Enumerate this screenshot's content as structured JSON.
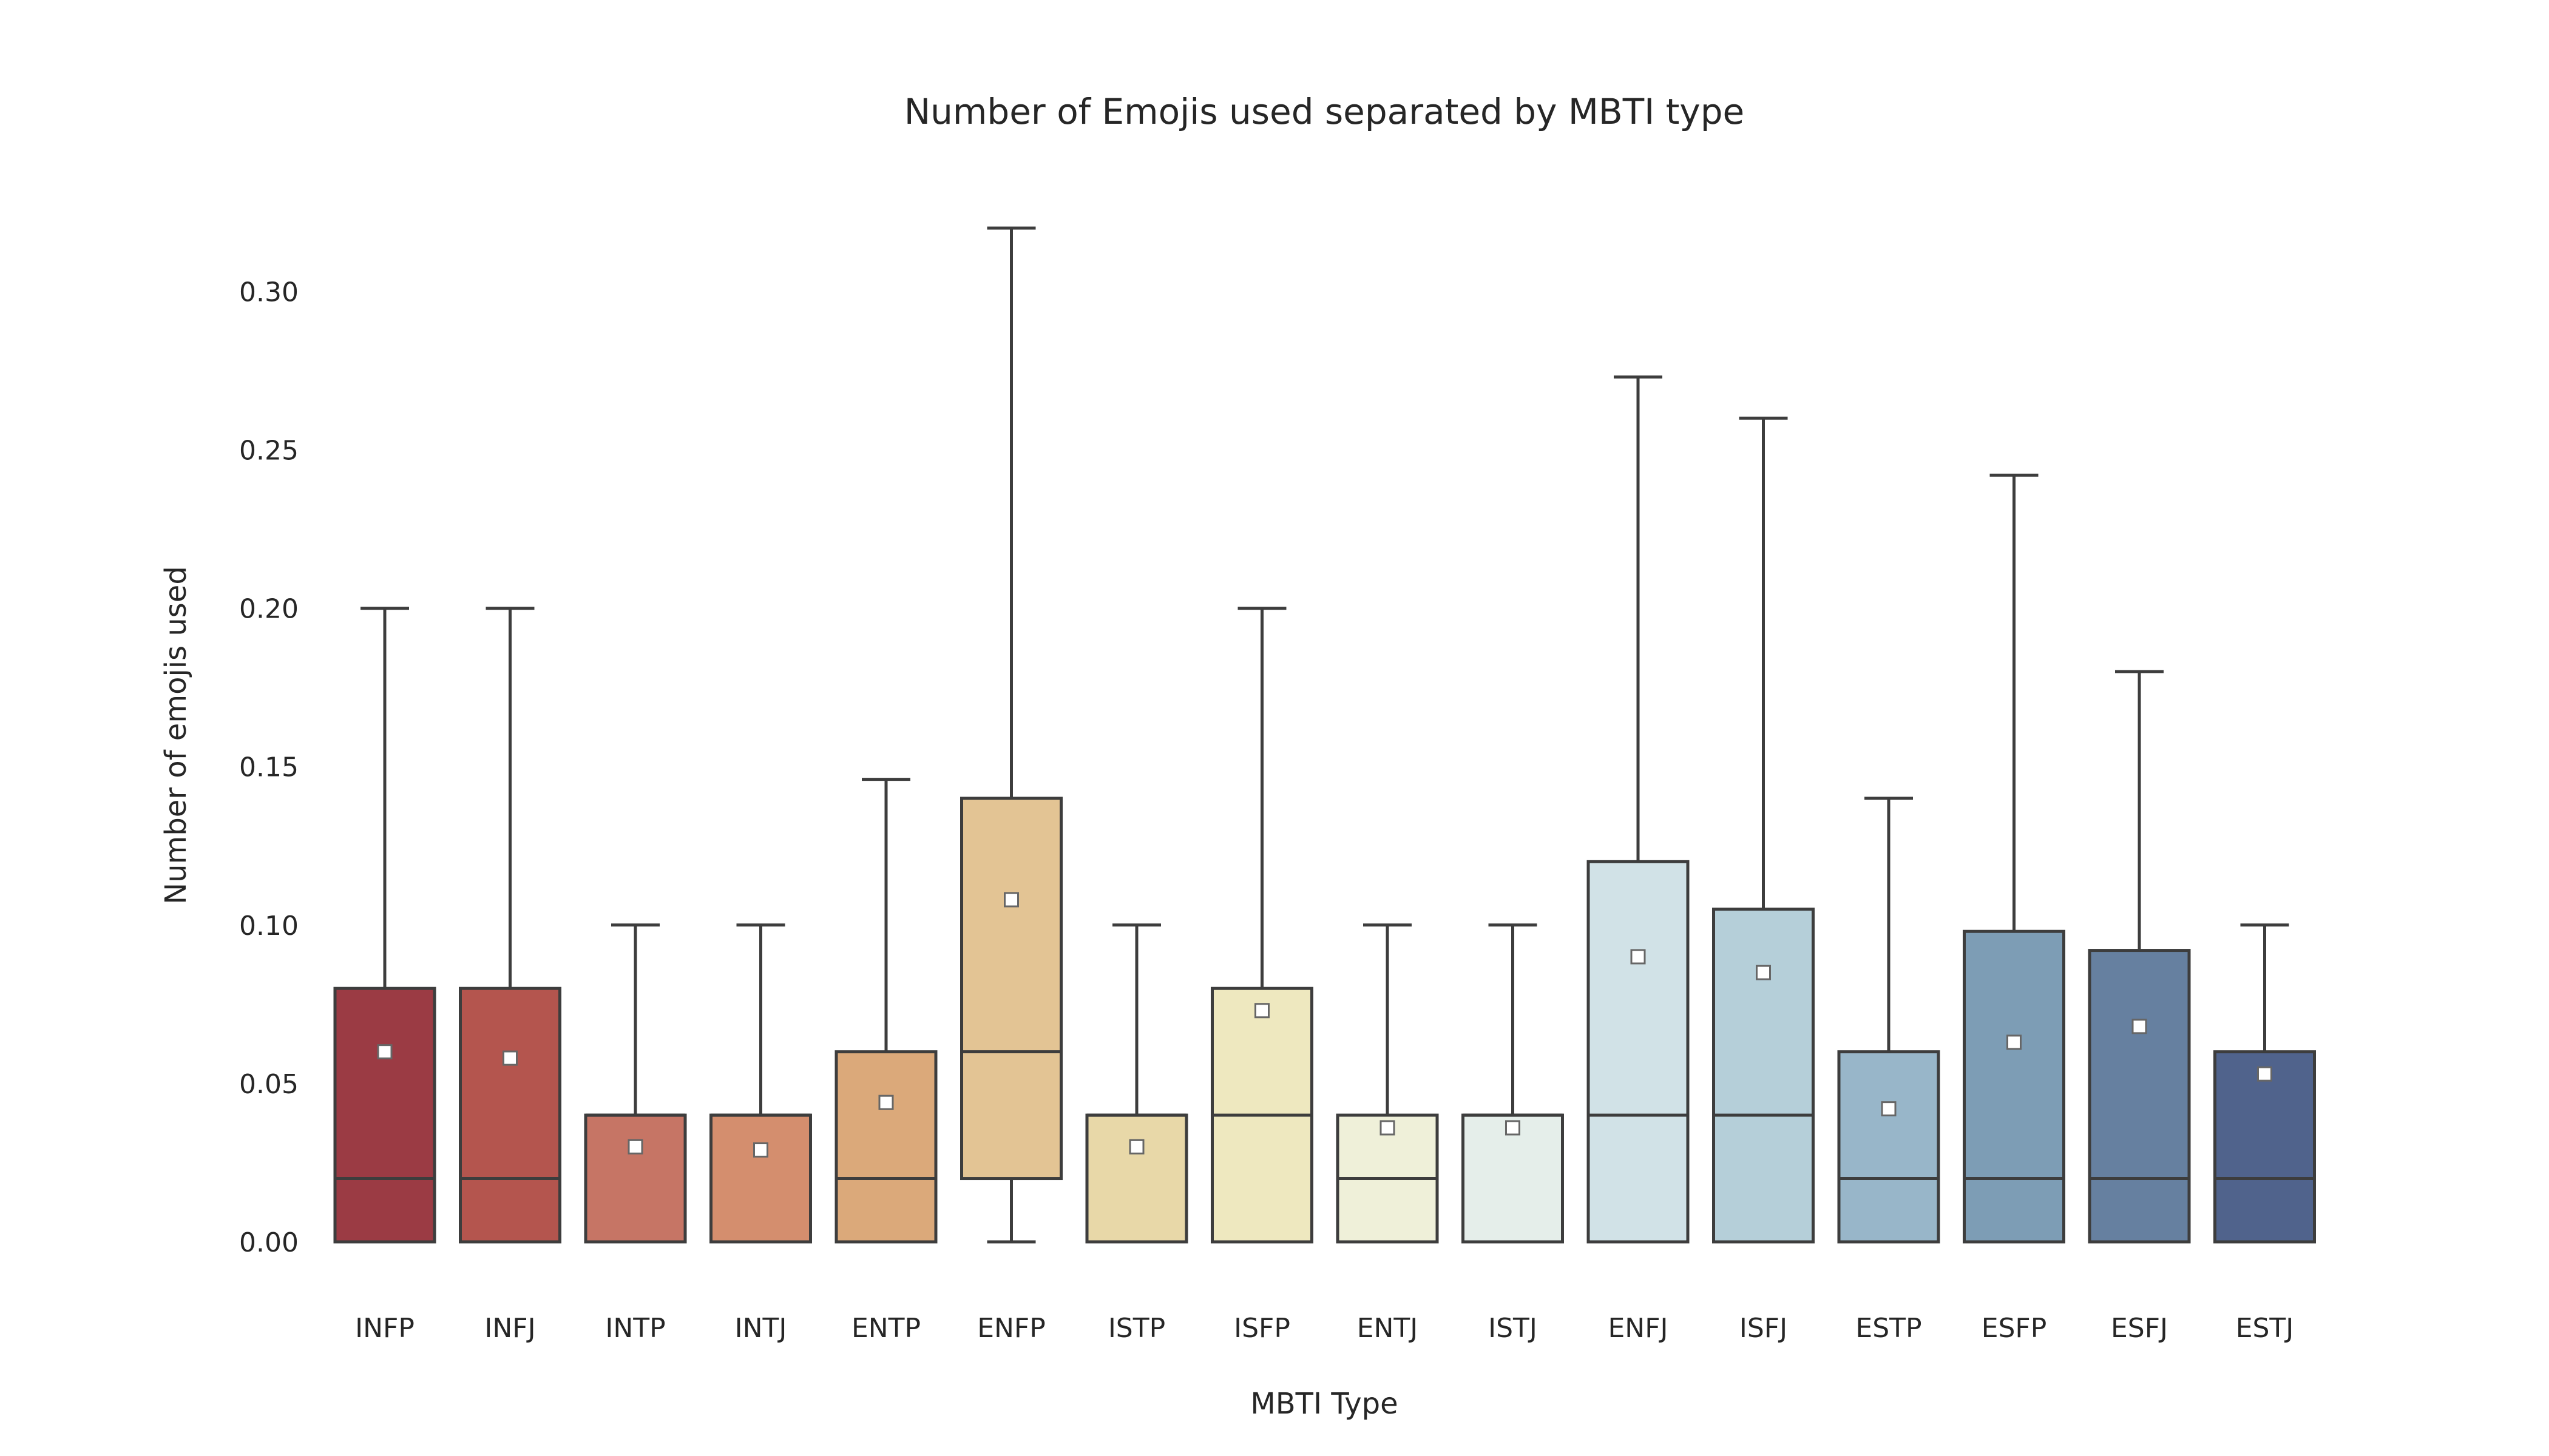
{
  "chart_data": {
    "type": "box",
    "title": "Number of Emojis used separated by MBTI type",
    "xlabel": "MBTI Type",
    "ylabel": "Number of emojis used",
    "ylim": [
      0,
      0.32
    ],
    "yticks": [
      "0.00",
      "0.05",
      "0.10",
      "0.15",
      "0.20",
      "0.25",
      "0.30"
    ],
    "ytick_values": [
      0,
      0.05,
      0.1,
      0.15,
      0.2,
      0.25,
      0.3
    ],
    "grid": false,
    "mean_marker": "white square",
    "categories": [
      "INFP",
      "INFJ",
      "INTP",
      "INTJ",
      "ENTP",
      "ENFP",
      "ISTP",
      "ISFP",
      "ENTJ",
      "ISTJ",
      "ENFJ",
      "ISFJ",
      "ESTP",
      "ESFP",
      "ESFJ",
      "ESTJ"
    ],
    "boxes": [
      {
        "name": "INFP",
        "whisker_low": 0,
        "q1": 0,
        "median": 0.02,
        "q3": 0.08,
        "whisker_high": 0.2,
        "mean": 0.06,
        "color": "#9b3b44"
      },
      {
        "name": "INFJ",
        "whisker_low": 0,
        "q1": 0,
        "median": 0.02,
        "q3": 0.08,
        "whisker_high": 0.2,
        "mean": 0.058,
        "color": "#b4554e"
      },
      {
        "name": "INTP",
        "whisker_low": 0,
        "q1": 0,
        "median": 0.04,
        "q3": 0.04,
        "whisker_high": 0.1,
        "mean": 0.03,
        "color": "#c67565"
      },
      {
        "name": "INTJ",
        "whisker_low": 0,
        "q1": 0,
        "median": 0.04,
        "q3": 0.04,
        "whisker_high": 0.1,
        "mean": 0.029,
        "color": "#d48e6e"
      },
      {
        "name": "ENTP",
        "whisker_low": 0,
        "q1": 0,
        "median": 0.02,
        "q3": 0.06,
        "whisker_high": 0.146,
        "mean": 0.044,
        "color": "#dba97a"
      },
      {
        "name": "ENFP",
        "whisker_low": 0,
        "q1": 0.02,
        "median": 0.06,
        "q3": 0.14,
        "whisker_high": 0.32,
        "mean": 0.108,
        "color": "#e3c494"
      },
      {
        "name": "ISTP",
        "whisker_low": 0,
        "q1": 0,
        "median": 0.04,
        "q3": 0.04,
        "whisker_high": 0.1,
        "mean": 0.03,
        "color": "#e8d8a8"
      },
      {
        "name": "ISFP",
        "whisker_low": 0,
        "q1": 0,
        "median": 0.04,
        "q3": 0.08,
        "whisker_high": 0.2,
        "mean": 0.073,
        "color": "#eee8bf"
      },
      {
        "name": "ENTJ",
        "whisker_low": 0,
        "q1": 0,
        "median": 0.02,
        "q3": 0.04,
        "whisker_high": 0.1,
        "mean": 0.036,
        "color": "#eff0d9"
      },
      {
        "name": "ISTJ",
        "whisker_low": 0,
        "q1": 0,
        "median": 0.04,
        "q3": 0.04,
        "whisker_high": 0.1,
        "mean": 0.036,
        "color": "#e5eeea"
      },
      {
        "name": "ENFJ",
        "whisker_low": 0,
        "q1": 0,
        "median": 0.04,
        "q3": 0.12,
        "whisker_high": 0.273,
        "mean": 0.09,
        "color": "#d1e2e7"
      },
      {
        "name": "ISFJ",
        "whisker_low": 0,
        "q1": 0,
        "median": 0.04,
        "q3": 0.105,
        "whisker_high": 0.26,
        "mean": 0.085,
        "color": "#b5cfd9"
      },
      {
        "name": "ESTP",
        "whisker_low": 0,
        "q1": 0,
        "median": 0.02,
        "q3": 0.06,
        "whisker_high": 0.14,
        "mean": 0.042,
        "color": "#98b6c9"
      },
      {
        "name": "ESFP",
        "whisker_low": 0,
        "q1": 0,
        "median": 0.02,
        "q3": 0.098,
        "whisker_high": 0.242,
        "mean": 0.063,
        "color": "#7d9db5"
      },
      {
        "name": "ESFJ",
        "whisker_low": 0,
        "q1": 0,
        "median": 0.02,
        "q3": 0.092,
        "whisker_high": 0.18,
        "mean": 0.068,
        "color": "#6680a0"
      },
      {
        "name": "ESTJ",
        "whisker_low": 0,
        "q1": 0,
        "median": 0.02,
        "q3": 0.06,
        "whisker_high": 0.1,
        "mean": 0.053,
        "color": "#50638c"
      }
    ]
  }
}
